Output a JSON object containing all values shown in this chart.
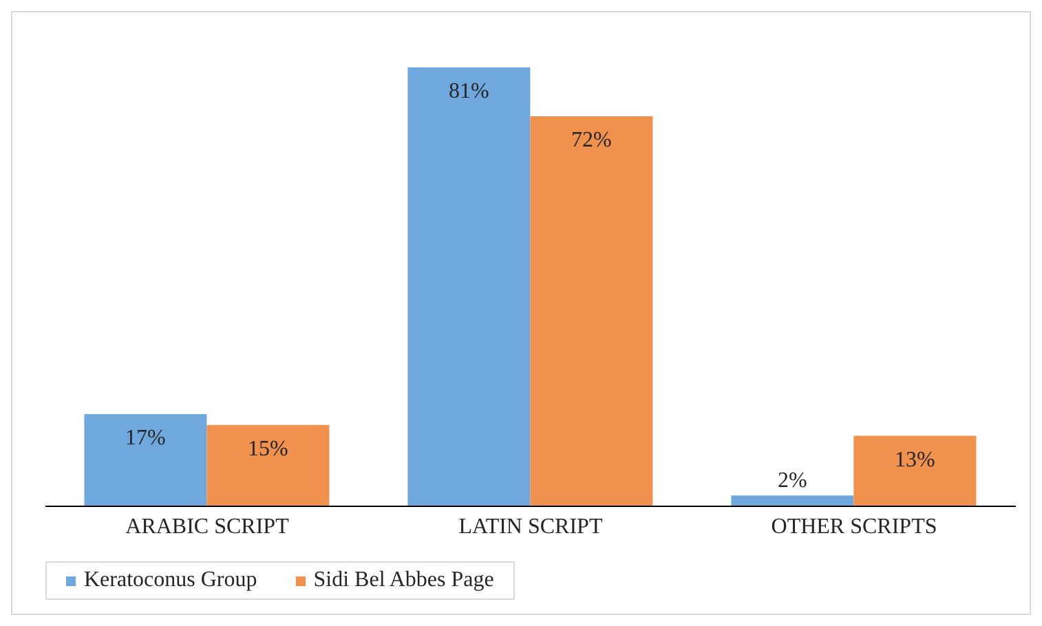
{
  "chart_data": {
    "type": "bar",
    "categories": [
      "ARABIC SCRIPT",
      "LATIN SCRIPT",
      "OTHER SCRIPTS"
    ],
    "series": [
      {
        "name": "Keratoconus Group",
        "color": "#6fa8dc",
        "values": [
          17,
          81,
          2
        ],
        "value_labels": [
          "17%",
          "81%",
          "2%"
        ]
      },
      {
        "name": "Sidi Bel Abbes Page",
        "color": "#f0914e",
        "values": [
          15,
          72,
          13
        ],
        "value_labels": [
          "15%",
          "72%",
          "13%"
        ]
      }
    ],
    "legend": "bottom",
    "grid": false
  }
}
